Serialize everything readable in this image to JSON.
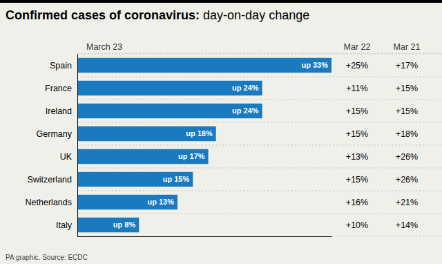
{
  "chart_data": {
    "type": "bar",
    "orientation": "horizontal",
    "title": "Confirmed cases of coronavirus:",
    "subtitle": "day-on-day change",
    "categories": [
      "Spain",
      "France",
      "Ireland",
      "Germany",
      "UK",
      "Switzerland",
      "Netherlands",
      "Italy"
    ],
    "series": [
      {
        "name": "March 23",
        "type": "bar",
        "color": "#1a7abf",
        "values": [
          33,
          24,
          24,
          18,
          17,
          15,
          13,
          8
        ],
        "value_labels": [
          "up 33%",
          "up 24%",
          "up 24%",
          "up 18%",
          "up 17%",
          "up 15%",
          "up 13%",
          "up 8%"
        ]
      },
      {
        "name": "Mar 22",
        "type": "text",
        "values": [
          25,
          11,
          15,
          15,
          13,
          15,
          16,
          10
        ],
        "value_labels": [
          "+25%",
          "+11%",
          "+15%",
          "+15%",
          "+13%",
          "+15%",
          "+16%",
          "+10%"
        ]
      },
      {
        "name": "Mar 21",
        "type": "text",
        "values": [
          17,
          15,
          15,
          18,
          26,
          26,
          21,
          14
        ],
        "value_labels": [
          "+17%",
          "+15%",
          "+15%",
          "+18%",
          "+26%",
          "+26%",
          "+21%",
          "+14%"
        ]
      }
    ],
    "data_labels": true,
    "xlim": [
      0,
      33
    ],
    "tick_labels": "y",
    "annotations": [
      "PA graphic. Source: ECDC"
    ]
  }
}
